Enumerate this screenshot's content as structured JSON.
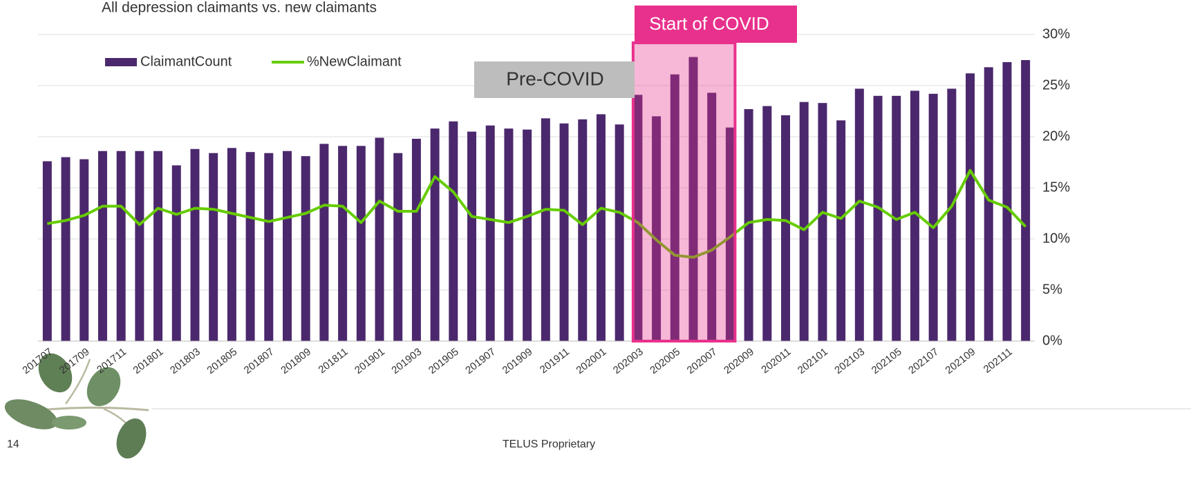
{
  "chart_data": {
    "type": "bar_line",
    "title": "All depression claimants vs. new claimants",
    "categories": [
      "201707",
      null,
      "201709",
      null,
      "201711",
      null,
      "201801",
      null,
      "201803",
      null,
      "201805",
      null,
      "201807",
      null,
      "201809",
      null,
      "201811",
      null,
      "201901",
      null,
      "201903",
      null,
      "201905",
      null,
      "201907",
      null,
      "201909",
      null,
      "201911",
      null,
      "202001",
      null,
      "202003",
      null,
      "202005",
      null,
      "202007",
      null,
      "202009",
      null,
      "202011",
      null,
      "202101",
      null,
      "202103",
      null,
      "202105",
      null,
      "202107",
      null,
      "202109",
      null,
      "202111",
      null
    ],
    "series": [
      {
        "name": "ClaimantCount",
        "kind": "bar",
        "color": "#4b286d",
        "values": [
          17.6,
          18.0,
          17.8,
          18.6,
          18.6,
          18.6,
          18.6,
          17.2,
          18.8,
          18.4,
          18.9,
          18.5,
          18.4,
          18.6,
          18.1,
          19.3,
          19.1,
          19.1,
          19.9,
          18.4,
          19.8,
          20.8,
          21.5,
          20.5,
          21.1,
          20.8,
          20.7,
          21.8,
          21.3,
          21.7,
          22.2,
          21.2,
          24.1,
          22.0,
          26.1,
          27.8,
          24.3,
          20.9,
          22.7,
          23.0,
          22.1,
          23.4,
          23.3,
          21.6,
          24.7,
          24.0,
          24.0,
          24.5,
          24.2,
          24.7,
          26.2,
          26.8,
          27.3,
          27.5
        ]
      },
      {
        "name": "%NewClaimant",
        "kind": "line",
        "color": "#66cc00",
        "values": [
          11.5,
          11.8,
          12.3,
          13.2,
          13.2,
          11.4,
          13.0,
          12.4,
          13.0,
          12.9,
          12.5,
          12.1,
          11.7,
          12.1,
          12.5,
          13.3,
          13.2,
          11.6,
          13.7,
          12.7,
          12.7,
          16.1,
          14.6,
          12.2,
          11.9,
          11.6,
          12.2,
          12.9,
          12.8,
          11.4,
          13.0,
          12.6,
          11.6,
          9.9,
          8.4,
          8.2,
          8.9,
          10.2,
          11.6,
          11.9,
          11.8,
          10.9,
          12.6,
          12.0,
          13.7,
          13.1,
          11.9,
          12.6,
          11.1,
          13.2,
          16.7,
          13.8,
          13.1,
          11.2
        ]
      }
    ],
    "ylim": [
      0,
      30
    ],
    "yticks": [
      {
        "value": 0,
        "label": "0%"
      },
      {
        "value": 5,
        "label": "5%"
      },
      {
        "value": 10,
        "label": "10%"
      },
      {
        "value": 15,
        "label": "15%"
      },
      {
        "value": 20,
        "label": "20%"
      },
      {
        "value": 25,
        "label": "25%"
      },
      {
        "value": 30,
        "label": "30%"
      }
    ],
    "y_axis_side": "right",
    "grid": true,
    "legend": "top",
    "annotations": [
      {
        "text": "Start of COVID"
      },
      {
        "text": "Pre-COVID"
      }
    ]
  },
  "footer": {
    "page": "14",
    "text": "TELUS Proprietary"
  }
}
